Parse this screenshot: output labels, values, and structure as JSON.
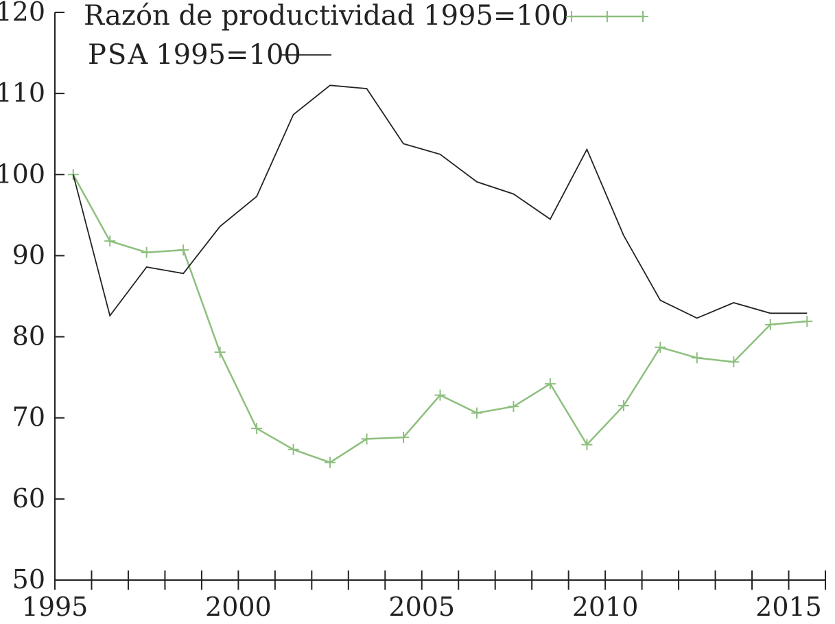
{
  "chart_data": {
    "type": "line",
    "title": "",
    "xlabel": "",
    "ylabel": "",
    "xlim": [
      1995,
      2016
    ],
    "ylim": [
      50,
      120
    ],
    "x_ticks": [
      1995,
      2000,
      2005,
      2010,
      2015
    ],
    "x_ticks_minor_step": 1,
    "y_ticks": [
      50,
      60,
      70,
      80,
      90,
      100,
      110,
      120
    ],
    "grid": false,
    "legend_position": "top-left",
    "series": [
      {
        "name": "Razón de productividad 1995=100",
        "color": "#8dbf7e",
        "marker": "plus",
        "x": [
          1995.5,
          1996.5,
          1997.5,
          1998.5,
          1999.5,
          2000.5,
          2001.5,
          2002.5,
          2003.5,
          2004.5,
          2005.5,
          2006.5,
          2007.5,
          2008.5,
          2009.5,
          2010.5,
          2011.5,
          2012.5,
          2013.5,
          2014.5,
          2015.5
        ],
        "values": [
          100,
          91.8,
          90.4,
          90.7,
          78.1,
          68.7,
          66.1,
          64.5,
          67.4,
          67.6,
          72.8,
          70.6,
          71.4,
          74.2,
          66.7,
          71.5,
          78.7,
          77.4,
          76.9,
          81.5,
          81.9
        ]
      },
      {
        "name": "1995=100",
        "legend_prefix": "PSA",
        "color": "#222222",
        "marker": "none",
        "x": [
          1995.5,
          1996.5,
          1997.5,
          1998.5,
          1999.5,
          2000.5,
          2001.5,
          2002.5,
          2003.5,
          2004.5,
          2005.5,
          2006.5,
          2007.5,
          2008.5,
          2009.5,
          2010.5,
          2011.5,
          2012.5,
          2013.5,
          2014.5,
          2015.5
        ],
        "values": [
          100,
          82.6,
          88.6,
          87.8,
          93.6,
          97.3,
          107.4,
          111.0,
          110.6,
          103.8,
          102.5,
          99.1,
          97.6,
          94.5,
          103.1,
          92.5,
          84.5,
          82.3,
          84.2,
          82.9,
          82.9
        ]
      }
    ]
  }
}
